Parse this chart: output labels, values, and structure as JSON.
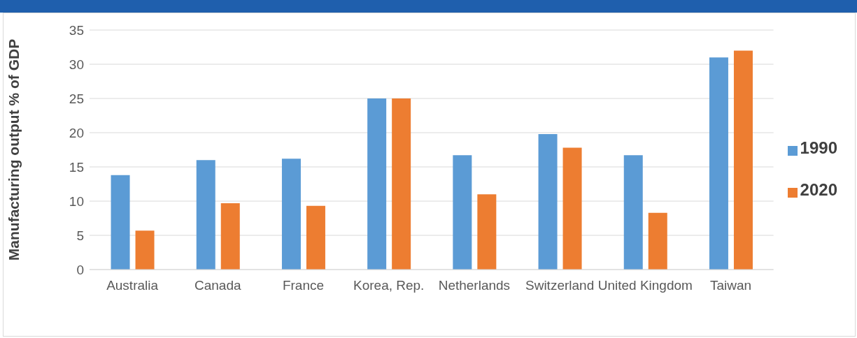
{
  "chart_data": {
    "type": "bar",
    "ylabel": "Manufacturing output % of GDP",
    "categories": [
      "Australia",
      "Canada",
      "France",
      "Korea, Rep.",
      "Netherlands",
      "Switzerland",
      "United Kingdom",
      "Taiwan"
    ],
    "series": [
      {
        "name": "1990",
        "color": "#5b9bd5",
        "values": [
          13.8,
          16.0,
          16.2,
          25.0,
          16.7,
          19.8,
          16.7,
          31.0
        ]
      },
      {
        "name": "2020",
        "color": "#ed7d31",
        "values": [
          5.7,
          9.7,
          9.3,
          25.0,
          11.0,
          17.8,
          8.3,
          32.0
        ]
      }
    ],
    "ylim": [
      0,
      35
    ],
    "yticks": [
      0,
      5,
      10,
      15,
      20,
      25,
      30,
      35
    ],
    "grid": "y",
    "legend": "right"
  }
}
